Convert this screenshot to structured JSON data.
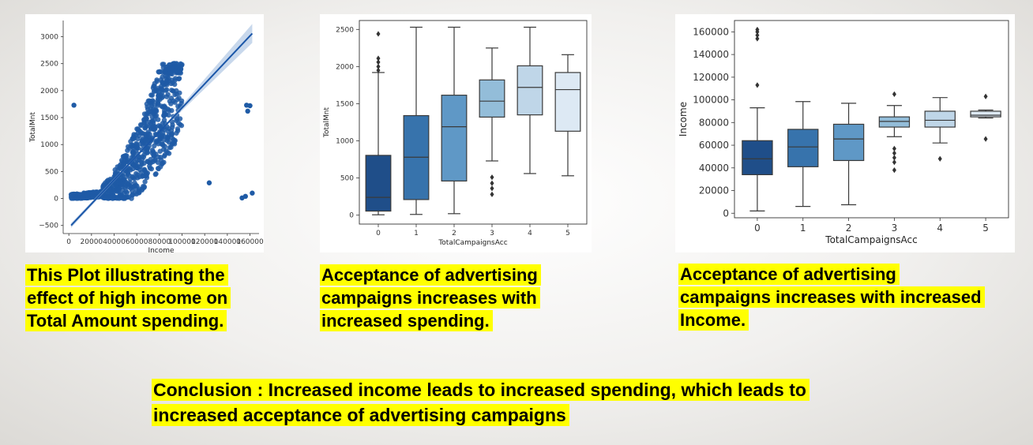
{
  "chart_data": [
    {
      "type": "scatter",
      "xlabel": "Income",
      "ylabel": "TotalMnt",
      "xlim": [
        -5000,
        168000
      ],
      "ylim": [
        -650,
        3300
      ],
      "xticks": [
        "0",
        "20000",
        "40000",
        "60000",
        "80000",
        "100000",
        "120000",
        "140000",
        "160000"
      ],
      "xtick_values": [
        0,
        20000,
        40000,
        60000,
        80000,
        100000,
        120000,
        140000,
        160000
      ],
      "yticks": [
        "−500",
        "0",
        "500",
        "1000",
        "1500",
        "2000",
        "2500",
        "3000"
      ],
      "ytick_values": [
        -500,
        0,
        500,
        1000,
        1500,
        2000,
        2500,
        3000
      ],
      "regression_line": {
        "x": [
          2000,
          162000
        ],
        "y": [
          -500,
          3060
        ]
      },
      "outliers": [
        {
          "x": 4500,
          "y": 1730
        },
        {
          "x": 124000,
          "y": 290
        },
        {
          "x": 153000,
          "y": 10
        },
        {
          "x": 156000,
          "y": 40
        },
        {
          "x": 157000,
          "y": 1730
        },
        {
          "x": 158000,
          "y": 1620
        },
        {
          "x": 160000,
          "y": 1720
        },
        {
          "x": 162000,
          "y": 100
        }
      ],
      "color": "#1f5ba6"
    },
    {
      "type": "box",
      "xlabel": "TotalCampaignsAcc",
      "ylabel": "TotalMnt",
      "ylim": [
        -120,
        2620
      ],
      "categories": [
        "0",
        "1",
        "2",
        "3",
        "4",
        "5"
      ],
      "yticks": [
        "0",
        "500",
        "1000",
        "1500",
        "2000",
        "2500"
      ],
      "ytick_values": [
        0,
        500,
        1000,
        1500,
        2000,
        2500
      ],
      "boxes": [
        {
          "min": 5,
          "q1": 55,
          "median": 240,
          "q3": 805,
          "max": 1920,
          "fliers": [
            1950,
            2000,
            2060,
            2110,
            2440
          ]
        },
        {
          "min": 10,
          "q1": 210,
          "median": 780,
          "q3": 1340,
          "max": 2530,
          "fliers": []
        },
        {
          "min": 20,
          "q1": 460,
          "median": 1190,
          "q3": 1615,
          "max": 2530,
          "fliers": []
        },
        {
          "min": 730,
          "q1": 1320,
          "median": 1535,
          "q3": 1820,
          "max": 2250,
          "fliers": [
            280,
            360,
            430,
            510
          ]
        },
        {
          "min": 560,
          "q1": 1350,
          "median": 1720,
          "q3": 2010,
          "max": 2530,
          "fliers": []
        },
        {
          "min": 530,
          "q1": 1130,
          "median": 1690,
          "q3": 1920,
          "max": 2160,
          "fliers": []
        }
      ],
      "colors": [
        "#1f4e89",
        "#3773ac",
        "#5f98c6",
        "#93bdd9",
        "#bfd6e8",
        "#dde9f4"
      ]
    },
    {
      "type": "box",
      "xlabel": "TotalCampaignsAcc",
      "ylabel": "Income",
      "ylim": [
        -4000,
        170000
      ],
      "categories": [
        "0",
        "1",
        "2",
        "3",
        "4",
        "5"
      ],
      "yticks": [
        "0",
        "20000",
        "40000",
        "60000",
        "80000",
        "100000",
        "120000",
        "140000",
        "160000"
      ],
      "ytick_values": [
        0,
        20000,
        40000,
        60000,
        80000,
        100000,
        120000,
        140000,
        160000
      ],
      "boxes": [
        {
          "min": 2000,
          "q1": 34000,
          "median": 48000,
          "q3": 64000,
          "max": 93000,
          "fliers": [
            113000,
            154000,
            157000,
            160000,
            162000
          ]
        },
        {
          "min": 6000,
          "q1": 41000,
          "median": 58500,
          "q3": 74000,
          "max": 98500,
          "fliers": []
        },
        {
          "min": 7500,
          "q1": 46500,
          "median": 65500,
          "q3": 78500,
          "max": 97000,
          "fliers": []
        },
        {
          "min": 67500,
          "q1": 76000,
          "median": 81000,
          "q3": 85000,
          "max": 95000,
          "fliers": [
            38000,
            45000,
            49000,
            53000,
            57000,
            105000
          ]
        },
        {
          "min": 62000,
          "q1": 76000,
          "median": 82000,
          "q3": 90000,
          "max": 102000,
          "fliers": [
            48000
          ]
        },
        {
          "min": 84000,
          "q1": 85000,
          "median": 86500,
          "q3": 90000,
          "max": 91000,
          "fliers": [
            65500,
            103000
          ]
        }
      ],
      "colors": [
        "#1f4e89",
        "#3773ac",
        "#5f98c6",
        "#93bdd9",
        "#bfd6e8",
        "#dde9f4"
      ]
    }
  ],
  "captions": {
    "plot1_line1": "This Plot illustrating the",
    "plot1_line2": "effect of high income on",
    "plot1_line3": "Total Amount spending.",
    "plot2_line1": "Acceptance of advertising",
    "plot2_line2": "campaigns increases with",
    "plot2_line3": "increased spending.",
    "plot3_line1": "Acceptance of advertising",
    "plot3_line2": "campaigns increases with increased",
    "plot3_line3": "Income.",
    "conclusion_line1": "Conclusion : Increased income leads to increased spending, which leads to",
    "conclusion_line2": "increased acceptance of advertising campaigns"
  }
}
